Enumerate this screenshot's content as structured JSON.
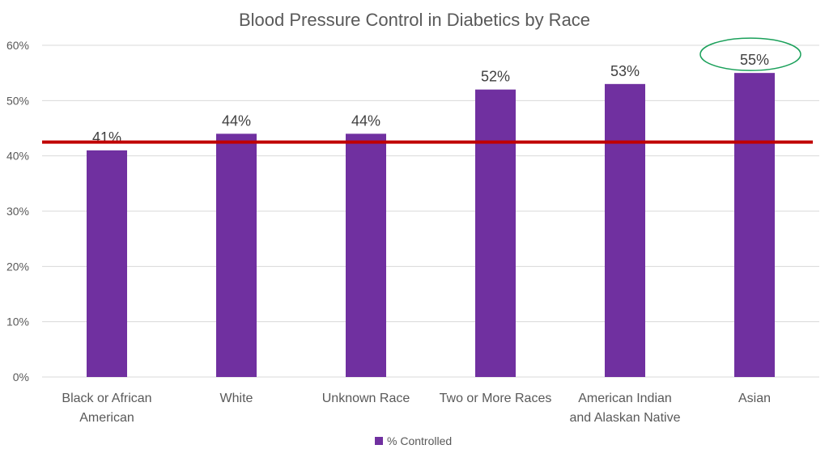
{
  "chart_data": {
    "type": "bar",
    "title": "Blood Pressure Control in Diabetics by Race",
    "categories": [
      [
        "Black or African",
        "American"
      ],
      [
        "White"
      ],
      [
        "Unknown Race"
      ],
      [
        "Two or More Races"
      ],
      [
        "American Indian",
        "and Alaskan Native"
      ],
      [
        "Asian"
      ]
    ],
    "series": [
      {
        "name": "% Controlled",
        "color": "#7030a0",
        "values": [
          41,
          44,
          44,
          52,
          53,
          55
        ],
        "labels": [
          "41%",
          "44%",
          "44%",
          "52%",
          "53%",
          "55%"
        ]
      }
    ],
    "ylim": [
      0,
      60
    ],
    "yticks": [
      0,
      10,
      20,
      30,
      40,
      50,
      60
    ],
    "ytick_labels": [
      "0%",
      "10%",
      "20%",
      "30%",
      "40%",
      "50%",
      "60%"
    ],
    "grid": true,
    "legend_position": "bottom",
    "reference_line": {
      "value": 42.5,
      "color": "#c00000"
    },
    "highlight": {
      "category_index": 5,
      "color": "#1aa05a",
      "shape": "ellipse"
    }
  }
}
